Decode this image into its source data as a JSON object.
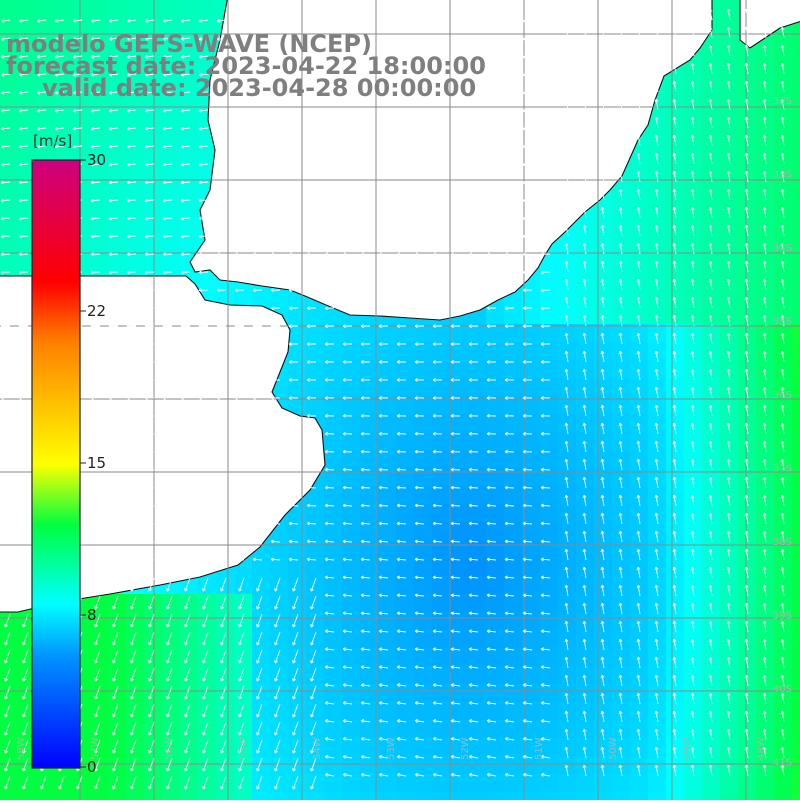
{
  "title": {
    "line1": "modelo GEFS-WAVE (NCEP)",
    "line2": "forecast date: 2023-04-22 18:00:00",
    "line3": "valid date: 2023-04-28 00:00:00"
  },
  "colorbar": {
    "unit": "[m/s]",
    "ticks": [
      "30",
      "22",
      "15",
      "8",
      "0"
    ],
    "stops": [
      "#0000ff",
      "#00aaff",
      "#00ffff",
      "#00ff00",
      "#ffff00",
      "#ff8800",
      "#ff0000",
      "#cc0077"
    ]
  },
  "map": {
    "latitude_labels": [
      "32S",
      "33S",
      "34S",
      "35S",
      "36S",
      "37S",
      "38S",
      "39S",
      "40S",
      "41S"
    ],
    "longitude_labels": [
      "58W",
      "57W",
      "56W",
      "55W",
      "54W",
      "53W",
      "52W",
      "51W",
      "50W",
      "49W",
      "48W"
    ],
    "land_color": "#ffffff",
    "grid_color": "#8a8a8a",
    "variable": "wind speed and direction"
  }
}
